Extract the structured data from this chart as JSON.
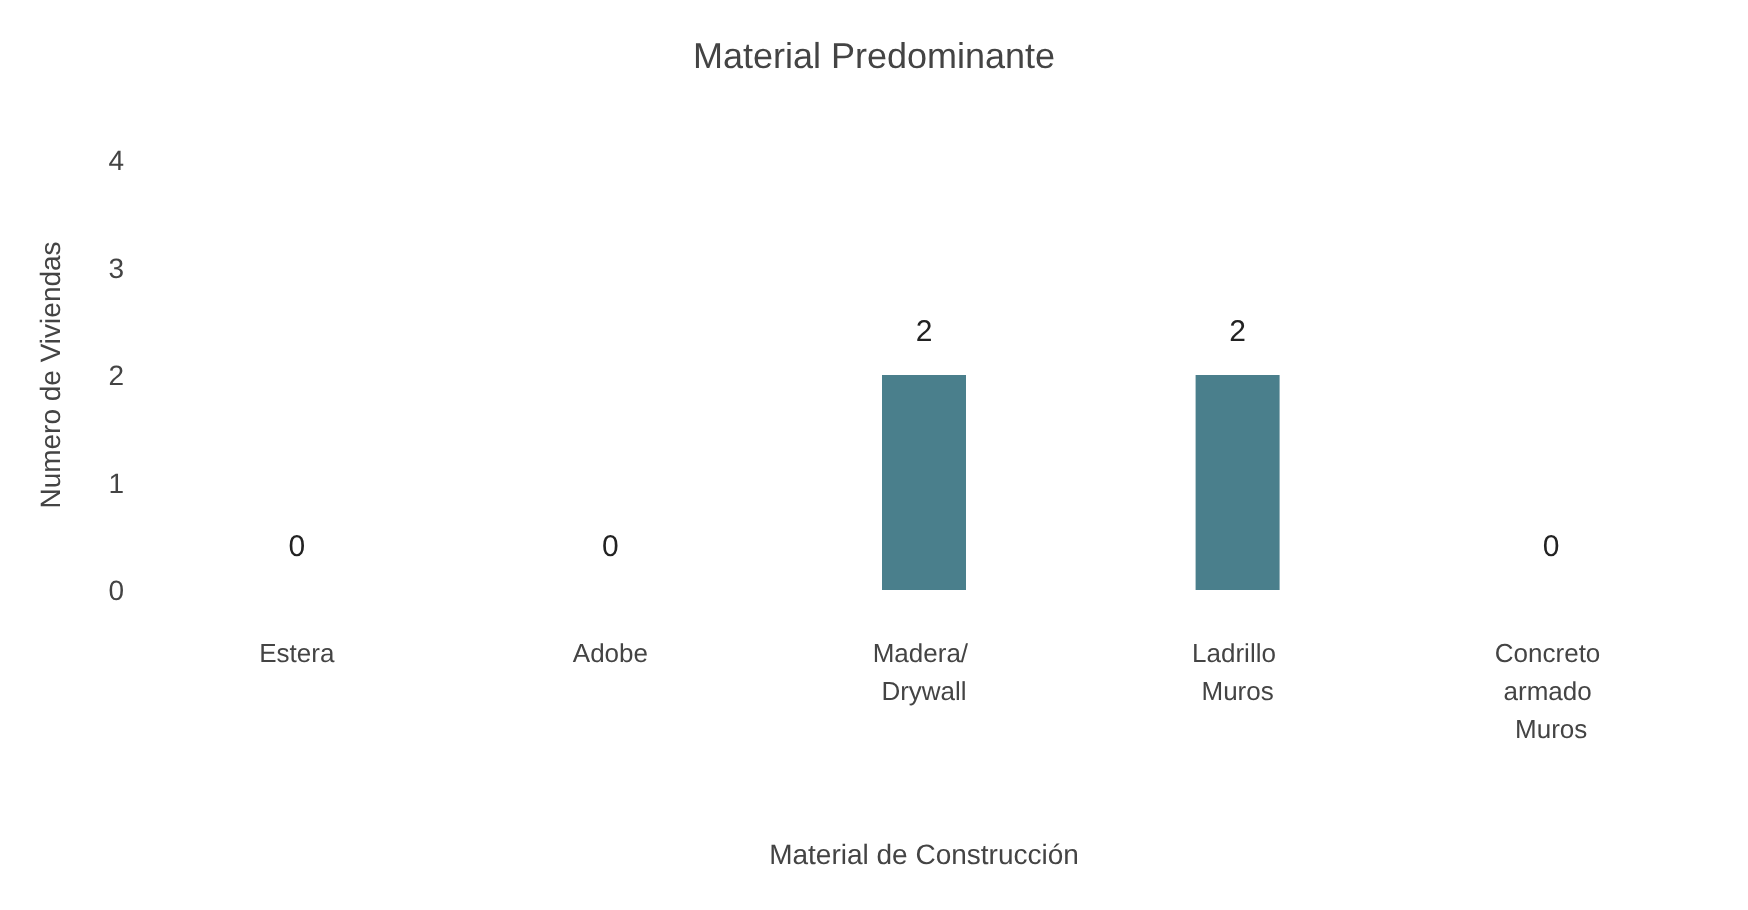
{
  "chart_data": {
    "type": "bar",
    "title": "Material Predominante",
    "xlabel": "Material de Construcción",
    "ylabel": "Numero de Viviendas",
    "categories": [
      "Estera",
      "Adobe",
      "Madera/ Drywall",
      "Ladrillo Muros",
      "Concreto armado Muros"
    ],
    "values": [
      0,
      0,
      2,
      2,
      0
    ],
    "color": "#4a7f8c",
    "ylim": [
      0,
      4
    ],
    "yticks": [
      0,
      1,
      2,
      3,
      4
    ],
    "grid": false,
    "data_labels": true
  }
}
